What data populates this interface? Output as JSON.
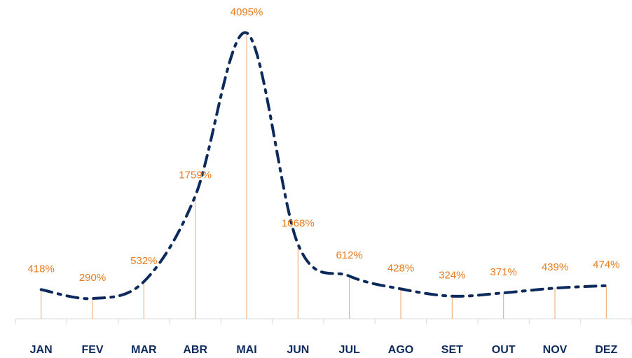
{
  "chart_data": {
    "type": "line",
    "categories": [
      "JAN",
      "FEV",
      "MAR",
      "ABR",
      "MAI",
      "JUN",
      "JUL",
      "AGO",
      "SET",
      "OUT",
      "NOV",
      "DEZ"
    ],
    "series": [
      {
        "color": "#0d2a5c",
        "values": [
          418,
          290,
          532,
          1759,
          4095,
          1068,
          612,
          428,
          324,
          371,
          439,
          474
        ],
        "value_labels": [
          "418%",
          "290%",
          "532%",
          "1759%",
          "4095%",
          "1068%",
          "612%",
          "428%",
          "324%",
          "371%",
          "439%",
          "474%"
        ]
      }
    ],
    "label_color": "#e87b1e",
    "drop_line_color": "#f4b183"
  }
}
